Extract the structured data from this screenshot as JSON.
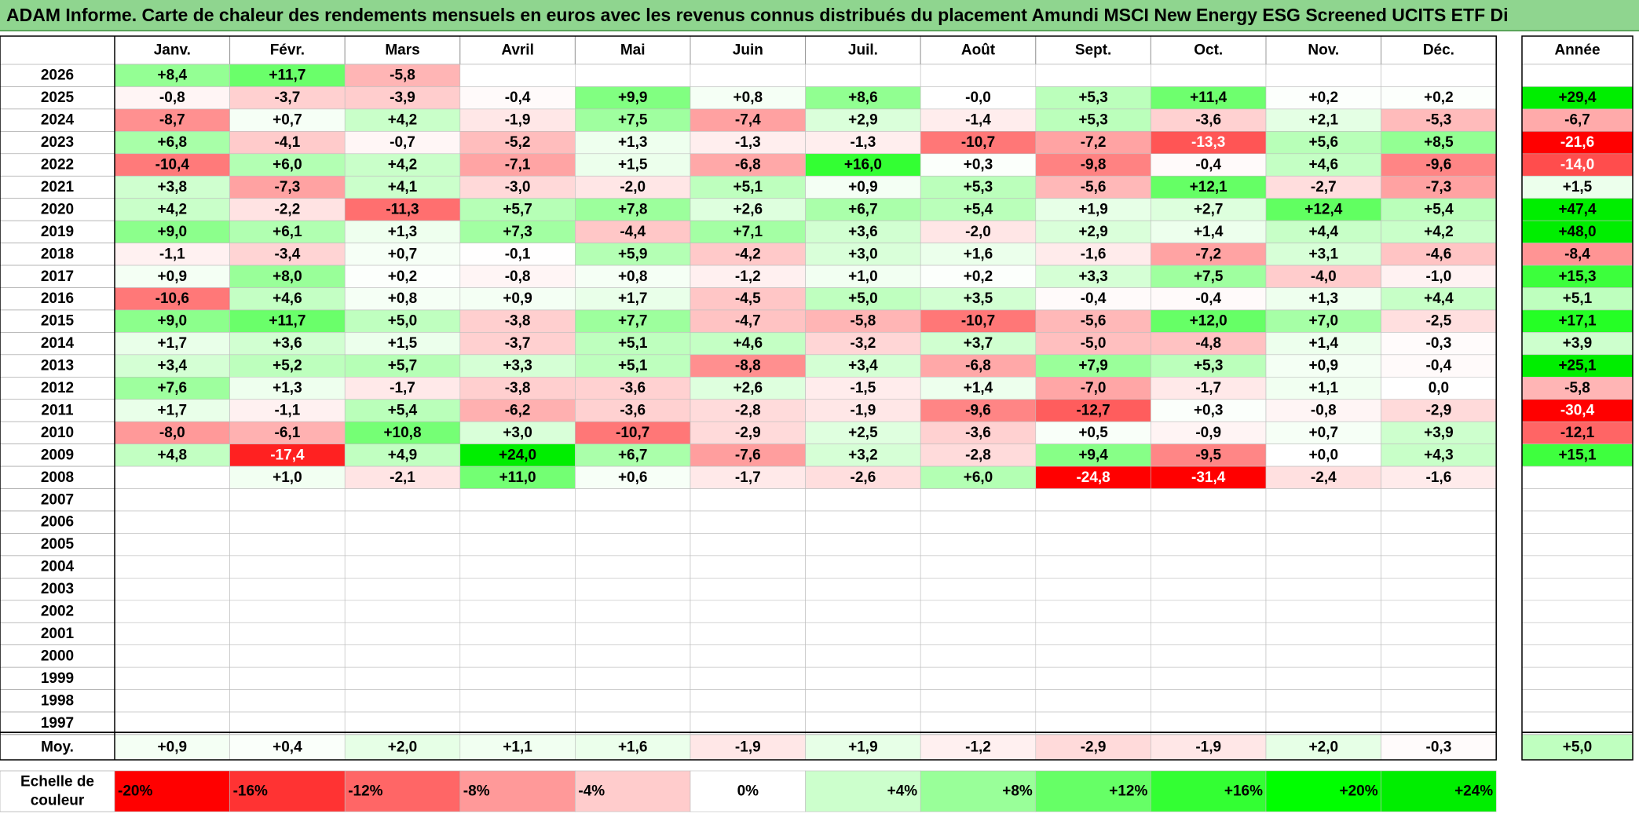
{
  "title": "ADAM Informe. Carte de chaleur des rendements mensuels en euros avec les revenus connus distribués du placement Amundi MSCI New Energy ESG Screened UCITS ETF Di",
  "chart_data": {
    "type": "heatmap",
    "columns": [
      "Janv.",
      "Févr.",
      "Mars",
      "Avril",
      "Mai",
      "Juin",
      "Juil.",
      "Août",
      "Sept.",
      "Oct.",
      "Nov.",
      "Déc."
    ],
    "year_header": "Année",
    "rows": [
      {
        "year": "2026",
        "values": [
          "+8,4",
          "+11,7",
          "-5,8",
          "",
          "",
          "",
          "",
          "",
          "",
          "",
          "",
          ""
        ],
        "annual": ""
      },
      {
        "year": "2025",
        "values": [
          "-0,8",
          "-3,7",
          "-3,9",
          "-0,4",
          "+9,9",
          "+0,8",
          "+8,6",
          "-0,0",
          "+5,3",
          "+11,4",
          "+0,2",
          "+0,2"
        ],
        "annual": "+29,4"
      },
      {
        "year": "2024",
        "values": [
          "-8,7",
          "+0,7",
          "+4,2",
          "-1,9",
          "+7,5",
          "-7,4",
          "+2,9",
          "-1,4",
          "+5,3",
          "-3,6",
          "+2,1",
          "-5,3"
        ],
        "annual": "-6,7"
      },
      {
        "year": "2023",
        "values": [
          "+6,8",
          "-4,1",
          "-0,7",
          "-5,2",
          "+1,3",
          "-1,3",
          "-1,3",
          "-10,7",
          "-7,2",
          "-13,3",
          "+5,6",
          "+8,5"
        ],
        "annual": "-21,6"
      },
      {
        "year": "2022",
        "values": [
          "-10,4",
          "+6,0",
          "+4,2",
          "-7,1",
          "+1,5",
          "-6,8",
          "+16,0",
          "+0,3",
          "-9,8",
          "-0,4",
          "+4,6",
          "-9,6"
        ],
        "annual": "-14,0"
      },
      {
        "year": "2021",
        "values": [
          "+3,8",
          "-7,3",
          "+4,1",
          "-3,0",
          "-2,0",
          "+5,1",
          "+0,9",
          "+5,3",
          "-5,6",
          "+12,1",
          "-2,7",
          "-7,3"
        ],
        "annual": "+1,5"
      },
      {
        "year": "2020",
        "values": [
          "+4,2",
          "-2,2",
          "-11,3",
          "+5,7",
          "+7,8",
          "+2,6",
          "+6,7",
          "+5,4",
          "+1,9",
          "+2,7",
          "+12,4",
          "+5,4"
        ],
        "annual": "+47,4"
      },
      {
        "year": "2019",
        "values": [
          "+9,0",
          "+6,1",
          "+1,3",
          "+7,3",
          "-4,4",
          "+7,1",
          "+3,6",
          "-2,0",
          "+2,9",
          "+1,4",
          "+4,4",
          "+4,2"
        ],
        "annual": "+48,0"
      },
      {
        "year": "2018",
        "values": [
          "-1,1",
          "-3,4",
          "+0,7",
          "-0,1",
          "+5,9",
          "-4,2",
          "+3,0",
          "+1,6",
          "-1,6",
          "-7,2",
          "+3,1",
          "-4,6"
        ],
        "annual": "-8,4"
      },
      {
        "year": "2017",
        "values": [
          "+0,9",
          "+8,0",
          "+0,2",
          "-0,8",
          "+0,8",
          "-1,2",
          "+1,0",
          "+0,2",
          "+3,3",
          "+7,5",
          "-4,0",
          "-1,0"
        ],
        "annual": "+15,3"
      },
      {
        "year": "2016",
        "values": [
          "-10,6",
          "+4,6",
          "+0,8",
          "+0,9",
          "+1,7",
          "-4,5",
          "+5,0",
          "+3,5",
          "-0,4",
          "-0,4",
          "+1,3",
          "+4,4"
        ],
        "annual": "+5,1"
      },
      {
        "year": "2015",
        "values": [
          "+9,0",
          "+11,7",
          "+5,0",
          "-3,8",
          "+7,7",
          "-4,7",
          "-5,8",
          "-10,7",
          "-5,6",
          "+12,0",
          "+7,0",
          "-2,5"
        ],
        "annual": "+17,1"
      },
      {
        "year": "2014",
        "values": [
          "+1,7",
          "+3,6",
          "+1,5",
          "-3,7",
          "+5,1",
          "+4,6",
          "-3,2",
          "+3,7",
          "-5,0",
          "-4,8",
          "+1,4",
          "-0,3"
        ],
        "annual": "+3,9"
      },
      {
        "year": "2013",
        "values": [
          "+3,4",
          "+5,2",
          "+5,7",
          "+3,3",
          "+5,1",
          "-8,8",
          "+3,4",
          "-6,8",
          "+7,9",
          "+5,3",
          "+0,9",
          "-0,4"
        ],
        "annual": "+25,1"
      },
      {
        "year": "2012",
        "values": [
          "+7,6",
          "+1,3",
          "-1,7",
          "-3,8",
          "-3,6",
          "+2,6",
          "-1,5",
          "+1,4",
          "-7,0",
          "-1,7",
          "+1,1",
          "0,0"
        ],
        "annual": "-5,8"
      },
      {
        "year": "2011",
        "values": [
          "+1,7",
          "-1,1",
          "+5,4",
          "-6,2",
          "-3,6",
          "-2,8",
          "-1,9",
          "-9,6",
          "-12,7",
          "+0,3",
          "-0,8",
          "-2,9"
        ],
        "annual": "-30,4"
      },
      {
        "year": "2010",
        "values": [
          "-8,0",
          "-6,1",
          "+10,8",
          "+3,0",
          "-10,7",
          "-2,9",
          "+2,5",
          "-3,6",
          "+0,5",
          "-0,9",
          "+0,7",
          "+3,9"
        ],
        "annual": "-12,1"
      },
      {
        "year": "2009",
        "values": [
          "+4,8",
          "-17,4",
          "+4,9",
          "+24,0",
          "+6,7",
          "-7,6",
          "+3,2",
          "-2,8",
          "+9,4",
          "-9,5",
          "+0,0",
          "+4,3"
        ],
        "annual": "+15,1"
      },
      {
        "year": "2008",
        "values": [
          "",
          "+1,0",
          "-2,1",
          "+11,0",
          "+0,6",
          "-1,7",
          "-2,6",
          "+6,0",
          "-24,8",
          "-31,4",
          "-2,4",
          "-1,6"
        ],
        "annual": ""
      },
      {
        "year": "2007",
        "values": [
          "",
          "",
          "",
          "",
          "",
          "",
          "",
          "",
          "",
          "",
          "",
          ""
        ],
        "annual": ""
      },
      {
        "year": "2006",
        "values": [
          "",
          "",
          "",
          "",
          "",
          "",
          "",
          "",
          "",
          "",
          "",
          ""
        ],
        "annual": ""
      },
      {
        "year": "2005",
        "values": [
          "",
          "",
          "",
          "",
          "",
          "",
          "",
          "",
          "",
          "",
          "",
          ""
        ],
        "annual": ""
      },
      {
        "year": "2004",
        "values": [
          "",
          "",
          "",
          "",
          "",
          "",
          "",
          "",
          "",
          "",
          "",
          ""
        ],
        "annual": ""
      },
      {
        "year": "2003",
        "values": [
          "",
          "",
          "",
          "",
          "",
          "",
          "",
          "",
          "",
          "",
          "",
          ""
        ],
        "annual": ""
      },
      {
        "year": "2002",
        "values": [
          "",
          "",
          "",
          "",
          "",
          "",
          "",
          "",
          "",
          "",
          "",
          ""
        ],
        "annual": ""
      },
      {
        "year": "2001",
        "values": [
          "",
          "",
          "",
          "",
          "",
          "",
          "",
          "",
          "",
          "",
          "",
          ""
        ],
        "annual": ""
      },
      {
        "year": "2000",
        "values": [
          "",
          "",
          "",
          "",
          "",
          "",
          "",
          "",
          "",
          "",
          "",
          ""
        ],
        "annual": ""
      },
      {
        "year": "1999",
        "values": [
          "",
          "",
          "",
          "",
          "",
          "",
          "",
          "",
          "",
          "",
          "",
          ""
        ],
        "annual": ""
      },
      {
        "year": "1998",
        "values": [
          "",
          "",
          "",
          "",
          "",
          "",
          "",
          "",
          "",
          "",
          "",
          ""
        ],
        "annual": ""
      },
      {
        "year": "1997",
        "values": [
          "",
          "",
          "",
          "",
          "",
          "",
          "",
          "",
          "",
          "",
          "",
          ""
        ],
        "annual": ""
      }
    ],
    "average": {
      "label": "Moy.",
      "values": [
        "+0,9",
        "+0,4",
        "+2,0",
        "+1,1",
        "+1,6",
        "-1,9",
        "+1,9",
        "-1,2",
        "-2,9",
        "-1,9",
        "+2,0",
        "-0,3"
      ],
      "annual": "+5,0"
    },
    "scale": {
      "label_line1": "Echelle de",
      "label_line2": "couleur",
      "stops": [
        {
          "label": "-20%",
          "value": -20,
          "color": "#ff0000"
        },
        {
          "label": "-16%",
          "value": -16,
          "color": "#ff3333"
        },
        {
          "label": "-12%",
          "value": -12,
          "color": "#ff6666"
        },
        {
          "label": "-8%",
          "value": -8,
          "color": "#ff9999"
        },
        {
          "label": "-4%",
          "value": -4,
          "color": "#ffcccc"
        },
        {
          "label": "0%",
          "value": 0,
          "color": "#ffffff"
        },
        {
          "label": "+4%",
          "value": 4,
          "color": "#ccffcc"
        },
        {
          "label": "+8%",
          "value": 8,
          "color": "#99ff99"
        },
        {
          "label": "+12%",
          "value": 12,
          "color": "#66ff66"
        },
        {
          "label": "+16%",
          "value": 16,
          "color": "#33ff33"
        },
        {
          "label": "+20%",
          "value": 20,
          "color": "#00ff00"
        },
        {
          "label": "+24%",
          "value": 24,
          "color": "#00ee00"
        }
      ]
    }
  }
}
